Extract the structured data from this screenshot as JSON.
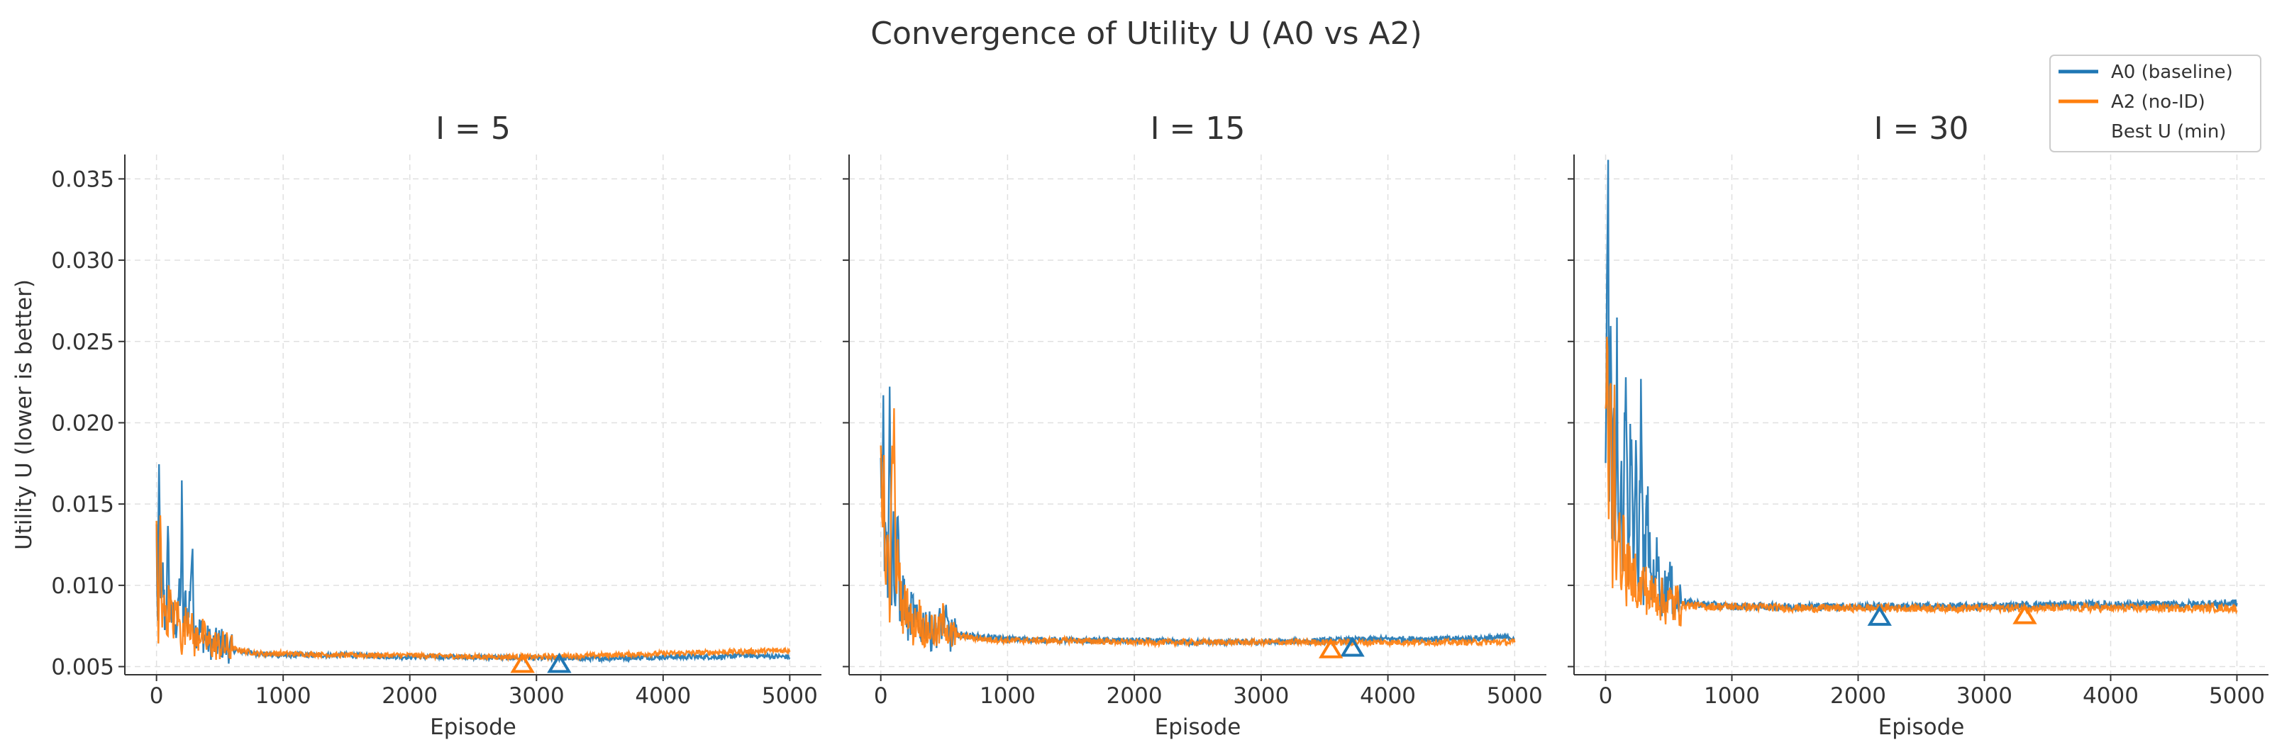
{
  "figure_title": "Convergence of Utility U (A0 vs A2)",
  "legend": {
    "placement": "top-right",
    "entries": [
      {
        "label": "A0 (baseline)",
        "color": "#1f77b4",
        "kind": "line"
      },
      {
        "label": "A2 (no-ID)",
        "color": "#ff7f0e",
        "kind": "line"
      },
      {
        "label": "Best U (min)",
        "color": "none",
        "kind": "marker"
      }
    ]
  },
  "colors": {
    "a0": "#1f77b4",
    "a2": "#ff7f0e"
  },
  "chart_data": [
    {
      "type": "line",
      "title": "I = 5",
      "xlabel": "Episode",
      "ylabel": "Utility U (lower is better)",
      "xlim": [
        -250,
        5250
      ],
      "ylim": [
        0.0045,
        0.0365
      ],
      "xticks": [
        0,
        1000,
        2000,
        3000,
        4000,
        5000
      ],
      "xtick_labels": [
        "0",
        "1000",
        "2000",
        "3000",
        "4000",
        "5000"
      ],
      "yticks": [
        0.005,
        0.01,
        0.015,
        0.02,
        0.025,
        0.03,
        0.035
      ],
      "ytick_labels": [
        "0.005",
        "0.010",
        "0.015",
        "0.020",
        "0.025",
        "0.030",
        "0.035"
      ],
      "grid": true,
      "series": [
        {
          "name": "A0 (baseline)",
          "color": "#1f77b4",
          "x": [
            0,
            10,
            20,
            35,
            50,
            70,
            90,
            110,
            130,
            150,
            170,
            190,
            200,
            210,
            230,
            250,
            280,
            300,
            320,
            350,
            400,
            450,
            500,
            600,
            700,
            800,
            1000,
            1500,
            2000,
            2500,
            3000,
            3500,
            4000,
            4500,
            4600,
            5000
          ],
          "values": [
            0.0131,
            0.0075,
            0.0165,
            0.0082,
            0.0106,
            0.0072,
            0.0122,
            0.0088,
            0.0079,
            0.0069,
            0.0095,
            0.0086,
            0.0168,
            0.0071,
            0.0091,
            0.0076,
            0.012,
            0.0069,
            0.0074,
            0.0071,
            0.0066,
            0.0063,
            0.0065,
            0.006,
            0.0059,
            0.0058,
            0.0057,
            0.0057,
            0.0056,
            0.0056,
            0.0055,
            0.0055,
            0.0056,
            0.0056,
            0.0057,
            0.0056
          ]
        },
        {
          "name": "A2 (no-ID)",
          "color": "#ff7f0e",
          "x": [
            0,
            15,
            30,
            45,
            60,
            80,
            100,
            130,
            160,
            200,
            250,
            300,
            350,
            400,
            500,
            600,
            800,
            1000,
            1500,
            2000,
            2500,
            3000,
            3500,
            4000,
            4500,
            5000
          ],
          "values": [
            0.0128,
            0.0068,
            0.0138,
            0.0072,
            0.0101,
            0.007,
            0.0094,
            0.0075,
            0.0086,
            0.0066,
            0.0083,
            0.0065,
            0.0072,
            0.0064,
            0.0063,
            0.0061,
            0.0058,
            0.0058,
            0.0057,
            0.0057,
            0.0056,
            0.0056,
            0.0057,
            0.0058,
            0.0059,
            0.006
          ]
        }
      ],
      "best": [
        {
          "series": "A0 (baseline)",
          "x": 3180,
          "y": 0.0053
        },
        {
          "series": "A2 (no-ID)",
          "x": 2890,
          "y": 0.0053
        }
      ]
    },
    {
      "type": "line",
      "title": "I = 15",
      "xlabel": "Episode",
      "xlim": [
        -250,
        5250
      ],
      "ylim": [
        0.0045,
        0.0365
      ],
      "xticks": [
        0,
        1000,
        2000,
        3000,
        4000,
        5000
      ],
      "xtick_labels": [
        "0",
        "1000",
        "2000",
        "3000",
        "4000",
        "5000"
      ],
      "yticks": [
        0.005,
        0.01,
        0.015,
        0.02,
        0.025,
        0.03,
        0.035
      ],
      "grid": true,
      "series": [
        {
          "name": "A0 (baseline)",
          "color": "#1f77b4",
          "x": [
            0,
            10,
            20,
            30,
            40,
            55,
            70,
            85,
            100,
            115,
            130,
            150,
            180,
            210,
            250,
            300,
            350,
            400,
            450,
            500,
            550,
            600,
            800,
            1000,
            1500,
            2000,
            2500,
            3000,
            3500,
            4000,
            4500,
            5000
          ],
          "values": [
            0.0193,
            0.016,
            0.0241,
            0.0118,
            0.0151,
            0.0092,
            0.0242,
            0.0101,
            0.0135,
            0.0084,
            0.0148,
            0.0079,
            0.0098,
            0.0075,
            0.0086,
            0.0072,
            0.0078,
            0.007,
            0.0074,
            0.0079,
            0.0069,
            0.007,
            0.0068,
            0.0067,
            0.0066,
            0.0066,
            0.0065,
            0.0065,
            0.0066,
            0.0067,
            0.0067,
            0.0068
          ]
        },
        {
          "name": "A2 (no-ID)",
          "color": "#ff7f0e",
          "x": [
            0,
            12,
            25,
            40,
            55,
            70,
            85,
            100,
            120,
            140,
            170,
            200,
            250,
            300,
            350,
            400,
            450,
            500,
            550,
            600,
            800,
            1000,
            1500,
            2000,
            2500,
            3000,
            3500,
            4000,
            4500,
            5000
          ],
          "values": [
            0.0176,
            0.0115,
            0.0182,
            0.0095,
            0.0135,
            0.0088,
            0.015,
            0.0211,
            0.0098,
            0.0118,
            0.008,
            0.0092,
            0.0073,
            0.0082,
            0.007,
            0.0074,
            0.0069,
            0.008,
            0.0068,
            0.0069,
            0.0067,
            0.0066,
            0.0066,
            0.0065,
            0.0065,
            0.0065,
            0.0065,
            0.0065,
            0.0065,
            0.0065
          ]
        }
      ],
      "best": [
        {
          "series": "A0 (baseline)",
          "x": 3720,
          "y": 0.0063
        },
        {
          "series": "A2 (no-ID)",
          "x": 3550,
          "y": 0.0062
        }
      ]
    },
    {
      "type": "line",
      "title": "I = 30",
      "xlabel": "Episode",
      "xlim": [
        -250,
        5250
      ],
      "ylim": [
        0.0045,
        0.0365
      ],
      "xticks": [
        0,
        1000,
        2000,
        3000,
        4000,
        5000
      ],
      "xtick_labels": [
        "0",
        "1000",
        "2000",
        "3000",
        "4000",
        "5000"
      ],
      "yticks": [
        0.005,
        0.01,
        0.015,
        0.02,
        0.025,
        0.03,
        0.035
      ],
      "grid": true,
      "series": [
        {
          "name": "A0 (baseline)",
          "color": "#1f77b4",
          "x": [
            0,
            10,
            20,
            30,
            40,
            50,
            60,
            75,
            90,
            105,
            120,
            140,
            160,
            180,
            200,
            220,
            240,
            260,
            280,
            300,
            330,
            360,
            400,
            450,
            500,
            550,
            600,
            700,
            800,
            1000,
            1500,
            2000,
            2500,
            3000,
            3500,
            4000,
            4500,
            5000
          ],
          "values": [
            0.0158,
            0.028,
            0.0348,
            0.018,
            0.029,
            0.014,
            0.024,
            0.0118,
            0.023,
            0.0125,
            0.018,
            0.011,
            0.025,
            0.0108,
            0.0195,
            0.0104,
            0.017,
            0.01,
            0.0214,
            0.0099,
            0.015,
            0.0097,
            0.0115,
            0.0093,
            0.0102,
            0.0091,
            0.009,
            0.0089,
            0.0088,
            0.0087,
            0.0087,
            0.0087,
            0.0087,
            0.0087,
            0.0088,
            0.0088,
            0.0088,
            0.0089
          ]
        },
        {
          "name": "A2 (no-ID)",
          "color": "#ff7f0e",
          "x": [
            0,
            12,
            25,
            40,
            55,
            70,
            85,
            100,
            120,
            140,
            160,
            180,
            200,
            230,
            260,
            300,
            350,
            400,
            450,
            500,
            600,
            800,
            1000,
            1500,
            2000,
            2500,
            3000,
            3500,
            4000,
            4500,
            5000
          ],
          "values": [
            0.0195,
            0.0262,
            0.014,
            0.0228,
            0.011,
            0.0205,
            0.0104,
            0.015,
            0.01,
            0.0135,
            0.0097,
            0.012,
            0.0095,
            0.011,
            0.0093,
            0.0102,
            0.0092,
            0.0096,
            0.009,
            0.0089,
            0.0088,
            0.0087,
            0.0087,
            0.0086,
            0.0086,
            0.0086,
            0.0086,
            0.0086,
            0.0086,
            0.0086,
            0.0086
          ]
        }
      ],
      "best": [
        {
          "series": "A0 (baseline)",
          "x": 2170,
          "y": 0.0082
        },
        {
          "series": "A2 (no-ID)",
          "x": 3320,
          "y": 0.0083
        }
      ]
    }
  ]
}
